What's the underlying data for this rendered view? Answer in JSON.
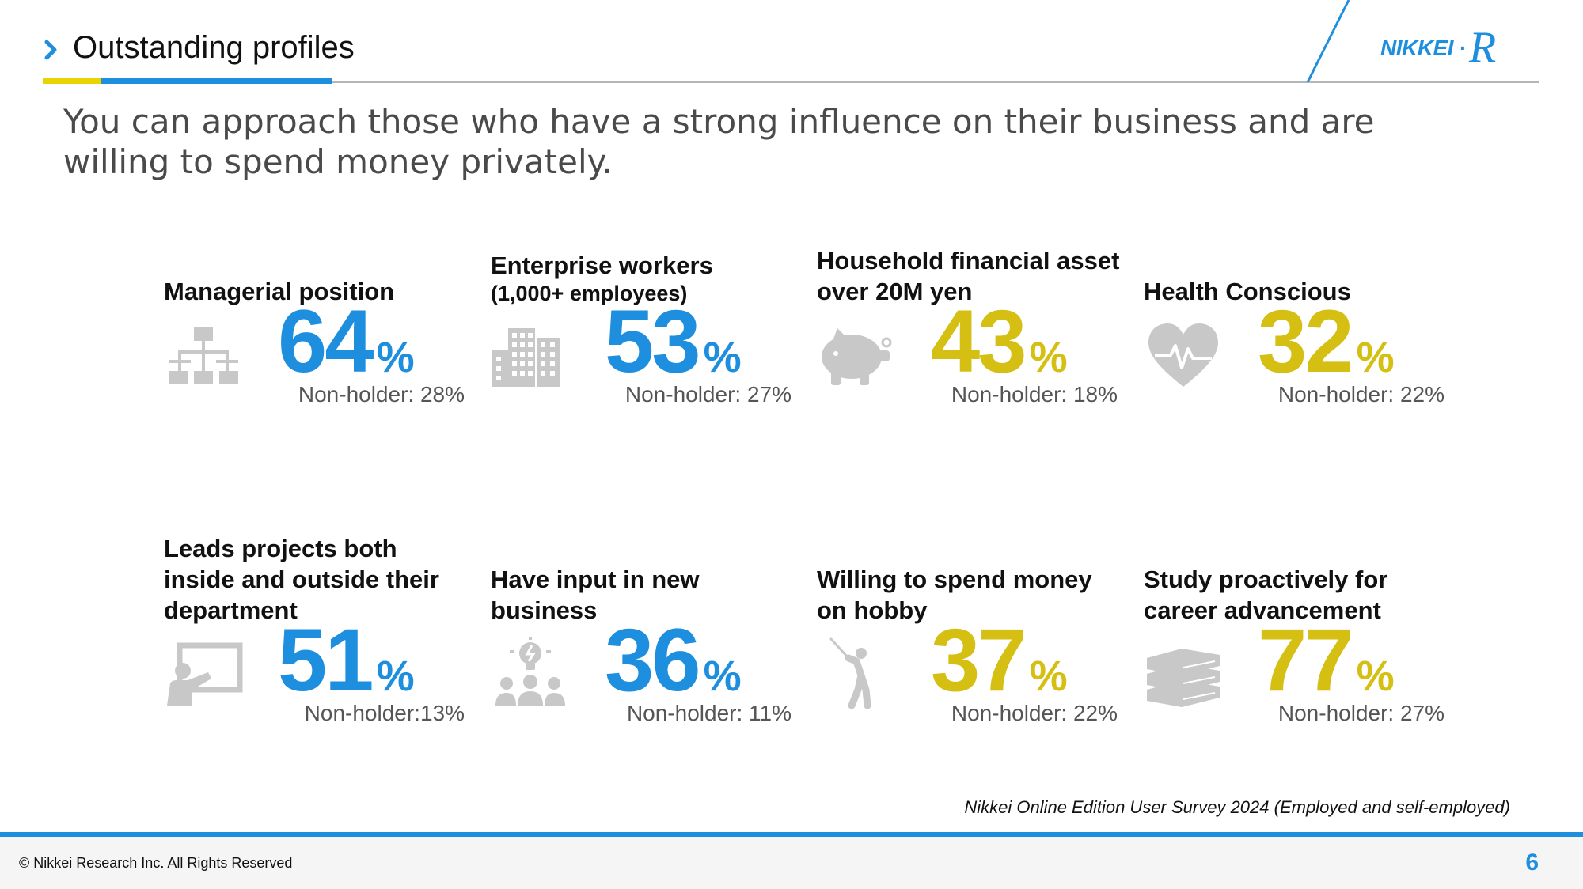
{
  "header": {
    "title": "Outstanding profiles",
    "logo_text": "NIKKEI·R"
  },
  "headline": "You can approach those who have a strong influence on their business and are willing to spend money privately.",
  "stats": [
    {
      "label": "Managerial position",
      "sub": "",
      "value": "64",
      "unit": "%",
      "non_holder": "Non-holder: 28%",
      "icon": "org-chart-icon",
      "color": "#1e8ede"
    },
    {
      "label": "Enterprise workers",
      "sub": "(1,000+ employees)",
      "value": "53",
      "unit": "%",
      "non_holder": "Non-holder: 27%",
      "icon": "buildings-icon",
      "color": "#1e8ede"
    },
    {
      "label": "Household financial asset over 20M yen",
      "sub": "",
      "value": "43",
      "unit": "%",
      "non_holder": "Non-holder: 18%",
      "icon": "piggy-bank-icon",
      "color": "#d4bf12"
    },
    {
      "label": "Health Conscious",
      "sub": "",
      "value": "32",
      "unit": "%",
      "non_holder": "Non-holder: 22%",
      "icon": "heart-pulse-icon",
      "color": "#d4bf12"
    },
    {
      "label": "Leads projects both inside and outside their department",
      "sub": "",
      "value": "51",
      "unit": "%",
      "non_holder": "Non-holder:13%",
      "icon": "presenter-board-icon",
      "color": "#1e8ede"
    },
    {
      "label": "Have input in new business",
      "sub": "",
      "value": "36",
      "unit": "%",
      "non_holder": "Non-holder: 11%",
      "icon": "team-idea-icon",
      "color": "#1e8ede"
    },
    {
      "label": "Willing to spend money on hobby",
      "sub": "",
      "value": "37",
      "unit": "%",
      "non_holder": "Non-holder: 22%",
      "icon": "golfer-icon",
      "color": "#d4bf12"
    },
    {
      "label": "Study proactively for career advancement",
      "sub": "",
      "value": "77",
      "unit": "%",
      "non_holder": "Non-holder: 27%",
      "icon": "books-icon",
      "color": "#d4bf12"
    }
  ],
  "source": "Nikkei Online Edition User Survey 2024 (Employed and self-employed)",
  "footer": {
    "copyright": "© Nikkei Research Inc. All Rights Reserved",
    "page_number": "6"
  }
}
